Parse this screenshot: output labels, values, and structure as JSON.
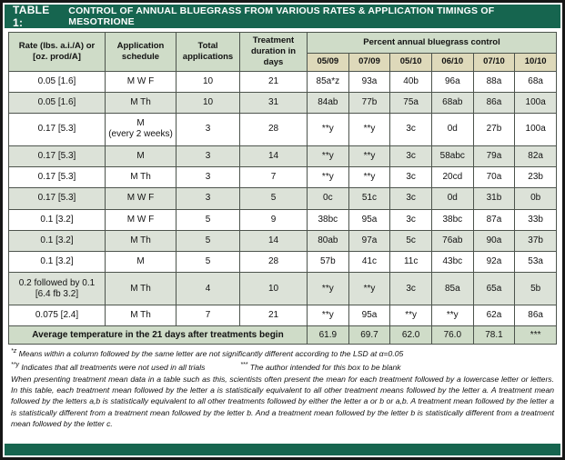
{
  "title_bar": {
    "label": "TABLE 1:",
    "title": "CONTROL OF ANNUAL BLUEGRASS FROM VARIOUS RATES & APPLICATION TIMINGS OF MESOTRIONE"
  },
  "table": {
    "headers": {
      "rate": "Rate (lbs. a.i./A) or [oz. prod/A]",
      "schedule": "Application schedule",
      "applications": "Total applications",
      "duration": "Treatment duration in days",
      "control_group": "Percent annual bluegrass control",
      "dates": [
        "05/09",
        "07/09",
        "05/10",
        "06/10",
        "07/10",
        "10/10"
      ]
    },
    "rows": [
      {
        "rate": "0.05 [1.6]",
        "schedule": "M W F",
        "apps": "10",
        "days": "21",
        "values": [
          "85a*z",
          "93a",
          "40b",
          "96a",
          "88a",
          "68a"
        ]
      },
      {
        "rate": "0.05 [1.6]",
        "schedule": "M Th",
        "apps": "10",
        "days": "31",
        "values": [
          "84ab",
          "77b",
          "75a",
          "68ab",
          "86a",
          "100a"
        ]
      },
      {
        "rate": "0.17 [5.3]",
        "schedule": "M\n(every 2 weeks)",
        "apps": "3",
        "days": "28",
        "values": [
          "**y",
          "**y",
          "3c",
          "0d",
          "27b",
          "100a"
        ]
      },
      {
        "rate": "0.17 [5.3]",
        "schedule": "M",
        "apps": "3",
        "days": "14",
        "values": [
          "**y",
          "**y",
          "3c",
          "58abc",
          "79a",
          "82a"
        ]
      },
      {
        "rate": "0.17 [5.3]",
        "schedule": "M Th",
        "apps": "3",
        "days": "7",
        "values": [
          "**y",
          "**y",
          "3c",
          "20cd",
          "70a",
          "23b"
        ]
      },
      {
        "rate": "0.17 [5.3]",
        "schedule": "M W F",
        "apps": "3",
        "days": "5",
        "values": [
          "0c",
          "51c",
          "3c",
          "0d",
          "31b",
          "0b"
        ]
      },
      {
        "rate": "0.1 [3.2]",
        "schedule": "M W F",
        "apps": "5",
        "days": "9",
        "values": [
          "38bc",
          "95a",
          "3c",
          "38bc",
          "87a",
          "33b"
        ]
      },
      {
        "rate": "0.1 [3.2]",
        "schedule": "M Th",
        "apps": "5",
        "days": "14",
        "values": [
          "80ab",
          "97a",
          "5c",
          "76ab",
          "90a",
          "37b"
        ]
      },
      {
        "rate": "0.1 [3.2]",
        "schedule": "M",
        "apps": "5",
        "days": "28",
        "values": [
          "57b",
          "41c",
          "11c",
          "43bc",
          "92a",
          "53a"
        ]
      },
      {
        "rate": "0.2 followed by 0.1\n[6.4 fb 3.2]",
        "schedule": "M Th",
        "apps": "4",
        "days": "10",
        "values": [
          "**y",
          "**y",
          "3c",
          "85a",
          "65a",
          "5b"
        ]
      },
      {
        "rate": "0.075 [2.4]",
        "schedule": "M Th",
        "apps": "7",
        "days": "21",
        "values": [
          "**y",
          "95a",
          "**y",
          "**y",
          "62a",
          "86a"
        ]
      }
    ],
    "summary": {
      "label": "Average temperature in the 21 days after treatments begin",
      "values": [
        "61.9",
        "69.7",
        "62.0",
        "76.0",
        "78.1",
        "***"
      ]
    }
  },
  "footnotes": {
    "z_marker": "*z",
    "z_text": "Means within a column followed by the same letter are not significantly different according to the LSD at α=0.05",
    "y_marker": "**y",
    "y_text": "Indicates that all treatments were not used in all trials",
    "blank_marker": "***",
    "blank_text": "The author intended for this box to be blank",
    "paragraph": "When presenting treatment mean data in a table such as this, scientists often present the mean for each treatment followed by a lowercase letter or letters. In this table, each treatment mean followed by the letter a is statistically equivalent to all other treatment means followed by the letter a. A treatment mean followed by the letters a,b is statistically equivalent to all other treatments followed by either the letter a or b or a,b. A treatment mean followed by the letter a is statistically different from a treatment mean followed by the letter b. And a treatment mean followed by the letter b is statistically different from a treatment mean followed by the letter c."
  },
  "colors": {
    "title_bar_green": "#16654f",
    "header_green": "#cfdcc8",
    "date_tan": "#ded9ba",
    "row_alt": "#dce2d8"
  }
}
